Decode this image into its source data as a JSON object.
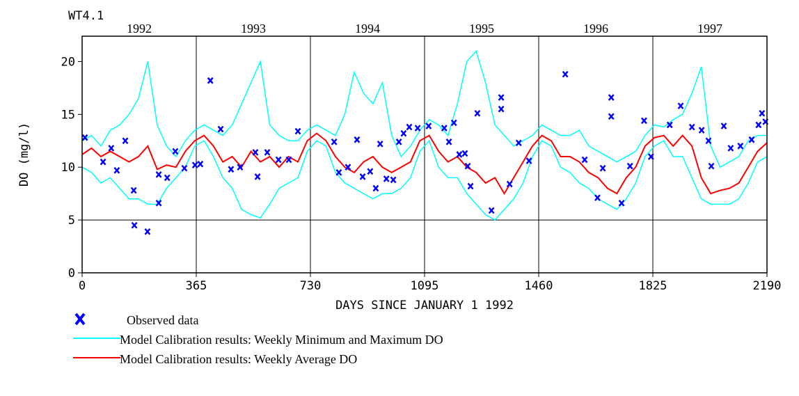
{
  "chart_data": {
    "type": "line",
    "title": "WT4.1",
    "year_labels": [
      "1992",
      "1993",
      "1994",
      "1995",
      "1996",
      "1997"
    ],
    "x_label": "DAYS SINCE JANUARY 1 1992",
    "y_label": "DO (mg/l)",
    "xlim": [
      0,
      2190
    ],
    "xticks": [
      0,
      365,
      730,
      1095,
      1460,
      1825,
      2190
    ],
    "ylim": [
      0,
      22.4
    ],
    "yticks": [
      0,
      5,
      10,
      15,
      20
    ],
    "hlines": [
      5
    ],
    "x": [
      0,
      30,
      60,
      90,
      120,
      150,
      180,
      210,
      240,
      270,
      300,
      330,
      360,
      390,
      420,
      450,
      480,
      510,
      540,
      570,
      600,
      630,
      660,
      690,
      720,
      750,
      780,
      810,
      840,
      870,
      900,
      930,
      960,
      990,
      1020,
      1050,
      1080,
      1110,
      1140,
      1170,
      1200,
      1230,
      1260,
      1290,
      1320,
      1350,
      1380,
      1410,
      1440,
      1470,
      1500,
      1530,
      1560,
      1590,
      1620,
      1650,
      1680,
      1710,
      1740,
      1770,
      1800,
      1830,
      1860,
      1890,
      1920,
      1950,
      1980,
      2010,
      2040,
      2070,
      2100,
      2130,
      2160,
      2190
    ],
    "band": {
      "name": "Model Calibration results: Weekly Minimum and Maximum DO",
      "color": "#00ffff",
      "lower": [
        10,
        9.5,
        8.5,
        9,
        8,
        7,
        7,
        6.5,
        6.5,
        8,
        9,
        10,
        12,
        12.5,
        11,
        9,
        8,
        6,
        5.5,
        5.2,
        6.5,
        8,
        8.5,
        9,
        11.5,
        12.5,
        12,
        9.5,
        8.5,
        8,
        7.5,
        7,
        7.5,
        7.5,
        8,
        9,
        11.5,
        12.5,
        10,
        9,
        9,
        7.5,
        6.5,
        5.5,
        5,
        6,
        7,
        8.5,
        11,
        12.5,
        12,
        10,
        9.5,
        8.5,
        8,
        7,
        6.5,
        6,
        7,
        8.5,
        11,
        12,
        12.5,
        11,
        11,
        9,
        7,
        6.5,
        6.5,
        6.5,
        7,
        8.5,
        10.5,
        11
      ],
      "upper": [
        12.5,
        13,
        12,
        13.5,
        14,
        15,
        16.5,
        20,
        14,
        12,
        11,
        12.5,
        13.5,
        14,
        13.5,
        13,
        14,
        16,
        18,
        20,
        14,
        13,
        12.5,
        12.5,
        13.5,
        14,
        13.5,
        13,
        15,
        19,
        17,
        16,
        18,
        13,
        11,
        12,
        13.5,
        14.5,
        14,
        13,
        16,
        20,
        21,
        18,
        14,
        13,
        12,
        12.5,
        13,
        14,
        13.5,
        13,
        13,
        13.5,
        12,
        11.5,
        11,
        10.5,
        11,
        11.5,
        13,
        14,
        13.8,
        14.5,
        15,
        17,
        19.5,
        12,
        10,
        10.5,
        11,
        12.5,
        13,
        13
      ]
    },
    "average": {
      "name": "Model Calibration results: Weekly Average DO",
      "color": "#ff0000",
      "values": [
        11.2,
        11.8,
        11,
        11.5,
        11,
        10.5,
        11,
        12,
        9.8,
        10.2,
        10,
        11.5,
        12.5,
        13,
        12,
        10.5,
        11,
        10,
        11.5,
        10.5,
        11,
        10,
        11,
        10.5,
        12.5,
        13.2,
        12.5,
        11,
        10,
        9.5,
        10.5,
        11,
        10,
        9.5,
        10,
        10.5,
        12.5,
        13,
        11.5,
        10.5,
        11,
        10,
        9.5,
        8.5,
        9,
        7.5,
        9,
        10.5,
        12,
        13,
        12.5,
        11,
        11,
        10.5,
        9.5,
        9,
        8,
        7.5,
        9,
        10,
        12,
        12.8,
        13,
        12,
        13,
        12,
        9,
        7.5,
        7.8,
        8,
        8.5,
        10,
        11.5,
        12.3
      ]
    },
    "observed": {
      "name": "Observed data",
      "color": "#0000ff",
      "x": [
        9,
        67,
        93,
        111,
        138,
        165,
        167,
        209,
        245,
        245,
        272,
        298,
        327,
        361,
        378,
        410,
        443,
        476,
        505,
        554,
        561,
        592,
        628,
        661,
        690,
        806,
        821,
        850,
        879,
        897,
        921,
        939,
        953,
        973,
        995,
        1013,
        1028,
        1046,
        1073,
        1108,
        1158,
        1173,
        1189,
        1206,
        1224,
        1233,
        1242,
        1264,
        1309,
        1340,
        1340,
        1367,
        1396,
        1429,
        1545,
        1607,
        1648,
        1665,
        1692,
        1692,
        1725,
        1752,
        1797,
        1819,
        1879,
        1914,
        1950,
        1981,
        2003,
        2012,
        2052,
        2074,
        2105,
        2141,
        2163,
        2174,
        2185
      ],
      "values": [
        12.8,
        10.5,
        11.8,
        9.7,
        12.5,
        7.8,
        4.5,
        3.9,
        6.6,
        9.3,
        9,
        11.5,
        9.9,
        10.2,
        10.3,
        18.2,
        13.6,
        9.8,
        10,
        11.4,
        9.1,
        11.4,
        10.7,
        10.7,
        13.4,
        12.4,
        9.5,
        10,
        12.6,
        9.1,
        9.6,
        8,
        12.2,
        8.9,
        8.8,
        12.4,
        13.2,
        13.8,
        13.7,
        13.9,
        13.7,
        12.4,
        14.2,
        11.2,
        11.3,
        10.1,
        8.2,
        15.1,
        5.9,
        16.6,
        15.5,
        8.4,
        12.3,
        10.6,
        18.8,
        10.7,
        7.1,
        9.9,
        16.6,
        14.8,
        6.6,
        10.1,
        14.4,
        11,
        14,
        15.8,
        13.8,
        13.5,
        12.5,
        10.1,
        13.9,
        11.8,
        12,
        12.6,
        14,
        15.1,
        14.3
      ]
    }
  }
}
